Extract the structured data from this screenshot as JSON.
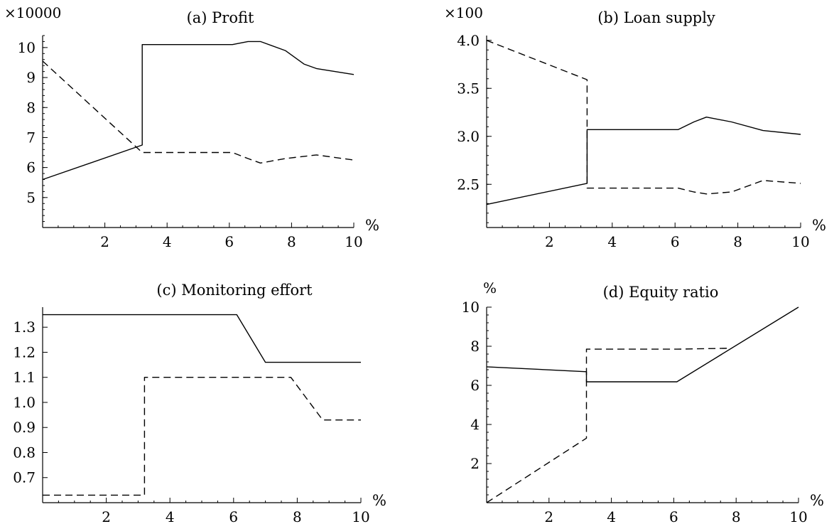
{
  "chart_data": [
    {
      "type": "line",
      "title": "(a) Profit",
      "multiplier_label": "×10000",
      "xlabel": "%",
      "ylabel": "",
      "xlim": [
        0,
        10
      ],
      "ylim": [
        4.0,
        10.4
      ],
      "xticks": [
        2,
        4,
        6,
        8,
        10
      ],
      "yticks": [
        5,
        6,
        7,
        8,
        9,
        10
      ],
      "ytick_labels": [
        "5",
        "6",
        "7",
        "8",
        "9",
        "10"
      ],
      "yminor": true,
      "series": [
        {
          "style": "solid",
          "points": [
            [
              0,
              5.6
            ],
            [
              3.2,
              6.75
            ],
            [
              3.2,
              10.1
            ],
            [
              6.1,
              10.1
            ],
            [
              6.6,
              10.2
            ],
            [
              7.0,
              10.2
            ],
            [
              7.8,
              9.9
            ],
            [
              8.4,
              9.45
            ],
            [
              8.8,
              9.3
            ],
            [
              10,
              9.1
            ]
          ]
        },
        {
          "style": "dashed",
          "points": [
            [
              0,
              9.55
            ],
            [
              3.2,
              6.5
            ],
            [
              6.1,
              6.5
            ],
            [
              6.6,
              6.3
            ],
            [
              7.0,
              6.15
            ],
            [
              7.8,
              6.3
            ],
            [
              8.8,
              6.42
            ],
            [
              10,
              6.25
            ]
          ]
        }
      ]
    },
    {
      "type": "line",
      "title": "(b) Loan supply",
      "multiplier_label": "×100",
      "xlabel": "%",
      "ylabel": "",
      "xlim": [
        0,
        10
      ],
      "ylim": [
        2.05,
        4.05
      ],
      "xticks": [
        2,
        4,
        6,
        8,
        10
      ],
      "yticks": [
        2.5,
        3.0,
        3.5,
        4.0
      ],
      "ytick_labels": [
        "2.5",
        "3.0",
        "3.5",
        "4.0"
      ],
      "yminor": true,
      "series": [
        {
          "style": "solid",
          "points": [
            [
              0,
              2.29
            ],
            [
              3.2,
              2.51
            ],
            [
              3.2,
              3.07
            ],
            [
              6.1,
              3.07
            ],
            [
              6.6,
              3.15
            ],
            [
              7.0,
              3.2
            ],
            [
              7.8,
              3.15
            ],
            [
              8.8,
              3.06
            ],
            [
              10,
              3.02
            ]
          ]
        },
        {
          "style": "dashed",
          "points": [
            [
              0,
              4.0
            ],
            [
              3.2,
              3.59
            ],
            [
              3.2,
              2.46
            ],
            [
              6.1,
              2.46
            ],
            [
              6.6,
              2.42
            ],
            [
              7.0,
              2.4
            ],
            [
              7.8,
              2.42
            ],
            [
              8.8,
              2.54
            ],
            [
              10,
              2.51
            ]
          ]
        }
      ]
    },
    {
      "type": "line",
      "title": "(c) Monitoring effort",
      "multiplier_label": "",
      "xlabel": "%",
      "ylabel": "",
      "xlim": [
        0,
        10
      ],
      "ylim": [
        0.6,
        1.38
      ],
      "xticks": [
        2,
        4,
        6,
        8,
        10
      ],
      "yticks": [
        0.7,
        0.8,
        0.9,
        1.0,
        1.1,
        1.2,
        1.3
      ],
      "ytick_labels": [
        "0.7",
        "0.8",
        "0.9",
        "1.0",
        "1.1",
        "1.2",
        "1.3"
      ],
      "yminor": false,
      "series": [
        {
          "style": "solid",
          "points": [
            [
              0,
              1.35
            ],
            [
              6.1,
              1.35
            ],
            [
              7.0,
              1.16
            ],
            [
              10,
              1.16
            ]
          ]
        },
        {
          "style": "dashed",
          "points": [
            [
              0,
              0.63
            ],
            [
              3.2,
              0.63
            ],
            [
              3.2,
              1.1
            ],
            [
              7.8,
              1.1
            ],
            [
              8.8,
              0.93
            ],
            [
              10,
              0.93
            ]
          ]
        }
      ]
    },
    {
      "type": "line",
      "title": "(d) Equity ratio",
      "multiplier_label": "",
      "xlabel": "%",
      "ylabel": "%",
      "xlim": [
        0,
        10
      ],
      "ylim": [
        0,
        10
      ],
      "xticks": [
        2,
        4,
        6,
        8,
        10
      ],
      "yticks": [
        2,
        4,
        6,
        8,
        10
      ],
      "ytick_labels": [
        "2",
        "4",
        "6",
        "8",
        "10"
      ],
      "yminor": true,
      "series": [
        {
          "style": "solid",
          "points": [
            [
              0,
              6.95
            ],
            [
              3.2,
              6.7
            ],
            [
              3.2,
              6.18
            ],
            [
              6.1,
              6.18
            ],
            [
              10,
              10
            ]
          ]
        },
        {
          "style": "dashed",
          "points": [
            [
              0,
              0
            ],
            [
              3.2,
              3.3
            ],
            [
              3.2,
              7.85
            ],
            [
              6.1,
              7.85
            ],
            [
              7.8,
              7.9
            ]
          ]
        }
      ]
    }
  ]
}
